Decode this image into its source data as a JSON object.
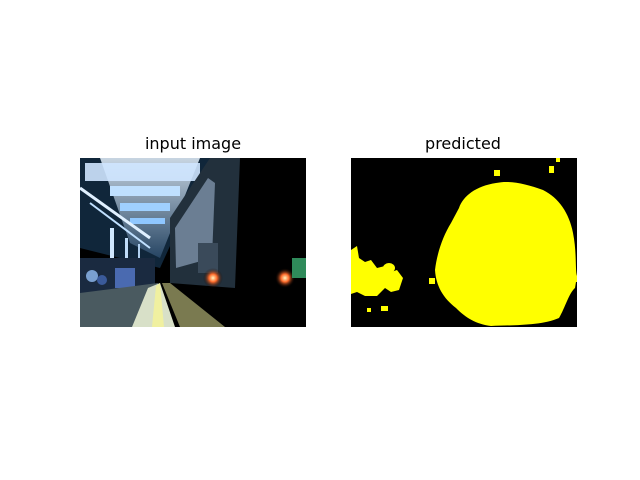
{
  "panels": [
    {
      "title": "input image"
    },
    {
      "title": "predicted"
    }
  ],
  "colors": {
    "background": "#ffffff",
    "mask_foreground": "#ffff00",
    "mask_background": "#000000"
  }
}
